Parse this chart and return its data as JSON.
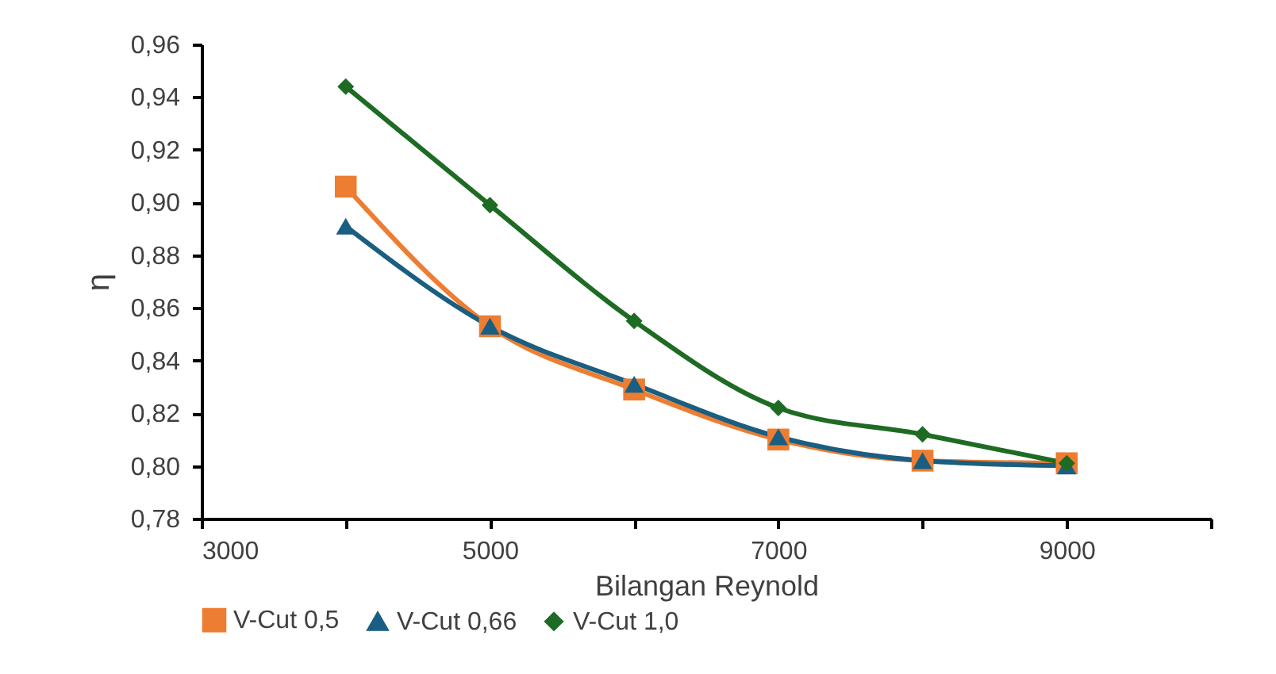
{
  "chart_data": {
    "type": "line",
    "xlabel": "Bilangan Reynold",
    "ylabel": "η",
    "x": [
      4000,
      5000,
      6000,
      7000,
      8000,
      9000
    ],
    "series": [
      {
        "name": "V-Cut 0,5",
        "color": "#ed7d31",
        "marker": "square",
        "values": [
          0.906,
          0.853,
          0.829,
          0.81,
          0.802,
          0.801
        ]
      },
      {
        "name": "V-Cut 0,66",
        "color": "#1a5e82",
        "marker": "triangle",
        "values": [
          0.891,
          0.853,
          0.831,
          0.811,
          0.802,
          0.8
        ]
      },
      {
        "name": "V-Cut 1,0",
        "color": "#1e6b24",
        "marker": "diamond",
        "values": [
          0.944,
          0.899,
          0.855,
          0.822,
          0.812,
          0.801
        ]
      }
    ],
    "xlim": [
      3000,
      10000
    ],
    "xticks": [
      3000,
      {
        "value": 4000,
        "label": null
      },
      5000,
      {
        "value": 6000,
        "label": null
      },
      7000,
      {
        "value": 8000,
        "label": null
      },
      9000,
      {
        "value": 10000,
        "label": null
      }
    ],
    "ylim": [
      0.78,
      0.96
    ],
    "yticks": [
      {
        "value": 0.78,
        "label": "0,78"
      },
      {
        "value": 0.8,
        "label": "0,80"
      },
      {
        "value": 0.82,
        "label": "0,82"
      },
      {
        "value": 0.84,
        "label": "0,84"
      },
      {
        "value": 0.86,
        "label": "0,86"
      },
      {
        "value": 0.88,
        "label": "0,88"
      },
      {
        "value": 0.9,
        "label": "0,90"
      },
      {
        "value": 0.92,
        "label": "0,92"
      },
      {
        "value": 0.94,
        "label": "0,94"
      },
      {
        "value": 0.96,
        "label": "0,96"
      }
    ],
    "grid": false,
    "legend": "bottom",
    "line_style": "solid"
  }
}
